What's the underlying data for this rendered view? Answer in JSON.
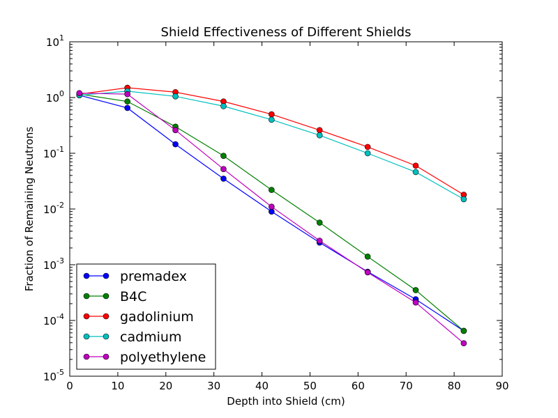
{
  "chart_data": {
    "type": "line",
    "title": "Shield Effectiveness of Different Shields",
    "xlabel": "Depth into Shield (cm)",
    "ylabel": "Fraction of Remaining Neutrons",
    "xlim": [
      0,
      90
    ],
    "ylim": [
      1e-05,
      10
    ],
    "yscale": "log",
    "grid": false,
    "legend_position": "lower-left",
    "x_ticks": [
      "0",
      "10",
      "20",
      "30",
      "40",
      "50",
      "60",
      "70",
      "80",
      "90"
    ],
    "y_ticks": [
      {
        "base": "10",
        "exp": "-5"
      },
      {
        "base": "10",
        "exp": "-4"
      },
      {
        "base": "10",
        "exp": "-3"
      },
      {
        "base": "10",
        "exp": "-2"
      },
      {
        "base": "10",
        "exp": "-1"
      },
      {
        "base": "10",
        "exp": "0"
      },
      {
        "base": "10",
        "exp": "1"
      }
    ],
    "x": [
      2,
      12,
      22,
      32,
      42,
      52,
      62,
      72,
      82
    ],
    "series": [
      {
        "name": "premadex",
        "color": "#0000ff",
        "values": [
          1.1,
          0.65,
          0.145,
          0.035,
          0.009,
          0.0025,
          0.00075,
          0.00024,
          6.5e-05
        ]
      },
      {
        "name": "B4C",
        "color": "#008000",
        "values": [
          1.15,
          0.85,
          0.3,
          0.09,
          0.022,
          0.0057,
          0.0014,
          0.00035,
          6.5e-05
        ]
      },
      {
        "name": "gadolinium",
        "color": "#ff0000",
        "values": [
          1.15,
          1.5,
          1.25,
          0.85,
          0.5,
          0.26,
          0.13,
          0.06,
          0.018
        ]
      },
      {
        "name": "cadmium",
        "color": "#00bfbf",
        "values": [
          1.1,
          1.3,
          1.05,
          0.7,
          0.4,
          0.21,
          0.1,
          0.046,
          0.015
        ]
      },
      {
        "name": "polyethylene",
        "color": "#bf00bf",
        "values": [
          1.2,
          1.15,
          0.26,
          0.052,
          0.011,
          0.0027,
          0.00073,
          0.00021,
          3.9e-05
        ]
      }
    ]
  }
}
